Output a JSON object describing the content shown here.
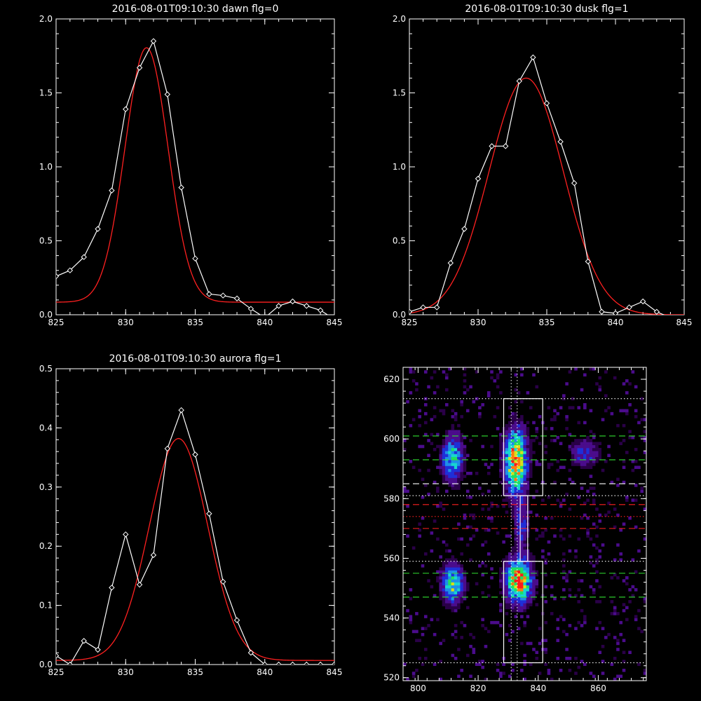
{
  "chart_data": [
    {
      "id": "dawn",
      "type": "line",
      "title": "2016-08-01T09:10:30 dawn flg=0",
      "xlim": [
        825,
        845
      ],
      "ylim": [
        0,
        2.0
      ],
      "xticks": [
        "825",
        "830",
        "835",
        "840",
        "845"
      ],
      "yticks": [
        "0.0",
        "0.5",
        "1.0",
        "1.5",
        "2.0"
      ],
      "series": [
        {
          "style": "observed-diamond-markers",
          "color": "#ffffff",
          "x": [
            825,
            826,
            827,
            828,
            829,
            830,
            831,
            832,
            833,
            834,
            835,
            836,
            837,
            838,
            839,
            840,
            841,
            842,
            843,
            844,
            845
          ],
          "y": [
            0.26,
            0.3,
            0.39,
            0.58,
            0.84,
            1.39,
            1.67,
            1.85,
            1.49,
            0.86,
            0.38,
            0.14,
            0.13,
            0.11,
            0.04,
            -0.02,
            0.06,
            0.09,
            0.06,
            0.03,
            -0.03
          ]
        },
        {
          "style": "gaussian-fit",
          "color": "#ff2020",
          "peak": 1.72,
          "center": 831.5,
          "sigma": 1.55,
          "baseline": 0.085
        }
      ]
    },
    {
      "id": "dusk",
      "type": "line",
      "title": "2016-08-01T09:10:30 dusk flg=1",
      "xlim": [
        825,
        845
      ],
      "ylim": [
        0,
        2.0
      ],
      "xticks": [
        "825",
        "830",
        "835",
        "840",
        "845"
      ],
      "yticks": [
        "0.0",
        "0.5",
        "1.0",
        "1.5",
        "2.0"
      ],
      "series": [
        {
          "style": "observed-diamond-markers",
          "color": "#ffffff",
          "x": [
            825,
            826,
            827,
            828,
            829,
            830,
            831,
            832,
            833,
            834,
            835,
            836,
            837,
            838,
            839,
            840,
            841,
            842,
            843,
            844,
            845
          ],
          "y": [
            0.02,
            0.05,
            0.05,
            0.35,
            0.58,
            0.92,
            1.14,
            1.14,
            1.58,
            1.74,
            1.43,
            1.17,
            0.89,
            0.36,
            0.02,
            0.01,
            0.05,
            0.09,
            0.02,
            -0.02,
            -0.03
          ]
        },
        {
          "style": "gaussian-fit",
          "color": "#ff2020",
          "peak": 1.6,
          "center": 833.5,
          "sigma": 2.7,
          "baseline": 0.0
        }
      ]
    },
    {
      "id": "aurora",
      "type": "line",
      "title": "2016-08-01T09:10:30 aurora flg=1",
      "xlim": [
        825,
        845
      ],
      "ylim": [
        0,
        0.5
      ],
      "xticks": [
        "825",
        "830",
        "835",
        "840",
        "845"
      ],
      "yticks": [
        "0.0",
        "0.1",
        "0.2",
        "0.3",
        "0.4",
        "0.5"
      ],
      "series": [
        {
          "style": "observed-diamond-markers",
          "color": "#ffffff",
          "x": [
            825,
            826,
            827,
            828,
            829,
            830,
            831,
            832,
            833,
            834,
            835,
            836,
            837,
            838,
            839,
            840,
            841,
            842,
            843,
            844,
            845
          ],
          "y": [
            0.015,
            0.0,
            0.04,
            0.025,
            0.13,
            0.22,
            0.135,
            0.185,
            0.365,
            0.43,
            0.355,
            0.255,
            0.14,
            0.075,
            0.02,
            0.0,
            0.0,
            0.0,
            0.0,
            0.0,
            0.0
          ]
        },
        {
          "style": "gaussian-fit",
          "color": "#ff2020",
          "peak": 0.375,
          "center": 833.8,
          "sigma": 2.1,
          "baseline": 0.007
        }
      ]
    },
    {
      "id": "image",
      "type": "heatmap",
      "title": "",
      "xlim": [
        795,
        876
      ],
      "ylim": [
        519,
        624
      ],
      "xticks": [
        "800",
        "820",
        "840",
        "860"
      ],
      "yticks": [
        "520",
        "540",
        "560",
        "580",
        "600",
        "620"
      ],
      "colormap": [
        "#2a0048",
        "#4b0c8c",
        "#1f2fd8",
        "#1e8fe8",
        "#17d6d0",
        "#20e060",
        "#d8e01a",
        "#ff7a10",
        "#ff1a1a"
      ],
      "blobs": [
        {
          "x": 832,
          "y": 592,
          "sx": 2.4,
          "sy": 7.0,
          "amp": 1.0
        },
        {
          "x": 833,
          "y": 552,
          "sx": 2.8,
          "sy": 4.8,
          "amp": 1.0
        },
        {
          "x": 811,
          "y": 593,
          "sx": 2.2,
          "sy": 5.0,
          "amp": 0.62
        },
        {
          "x": 811,
          "y": 551,
          "sx": 2.4,
          "sy": 4.2,
          "amp": 0.66
        },
        {
          "x": 855,
          "y": 595,
          "sx": 3.0,
          "sy": 3.0,
          "amp": 0.32
        },
        {
          "x": 834,
          "y": 571,
          "sx": 1.6,
          "sy": 6.0,
          "amp": 0.3
        }
      ],
      "boxes": [
        {
          "x0": 828.5,
          "x1": 841.5,
          "y0": 581,
          "y1": 613.5,
          "color": "#ffffff"
        },
        {
          "x0": 834,
          "x1": 836.5,
          "y0": 559,
          "y1": 581,
          "color": "#ffffff"
        },
        {
          "x0": 828.5,
          "x1": 841.5,
          "y0": 525,
          "y1": 559,
          "color": "#ffffff"
        }
      ],
      "hlines": [
        {
          "y": 613.5,
          "style": "dotted",
          "color": "#ffffff"
        },
        {
          "y": 601,
          "style": "dashed",
          "color": "#30e030"
        },
        {
          "y": 593,
          "style": "dashed",
          "color": "#30e030"
        },
        {
          "y": 585,
          "style": "dashed",
          "color": "#ffffff"
        },
        {
          "y": 581,
          "style": "dotted",
          "color": "#ffffff"
        },
        {
          "y": 578,
          "style": "dashed",
          "color": "#ff2020"
        },
        {
          "y": 574,
          "style": "dotted",
          "color": "#ff2020"
        },
        {
          "y": 570,
          "style": "dashed",
          "color": "#ff2020"
        },
        {
          "y": 559,
          "style": "dotted",
          "color": "#ffffff"
        },
        {
          "y": 555,
          "style": "dashed",
          "color": "#30e030"
        },
        {
          "y": 547,
          "style": "dashed",
          "color": "#30e030"
        },
        {
          "y": 525,
          "style": "dotted",
          "color": "#ffffff"
        }
      ],
      "vlines": [
        {
          "x": 831,
          "style": "dotted",
          "color": "#ffffff"
        },
        {
          "x": 833,
          "style": "dotted",
          "color": "#ffffff"
        }
      ]
    }
  ]
}
